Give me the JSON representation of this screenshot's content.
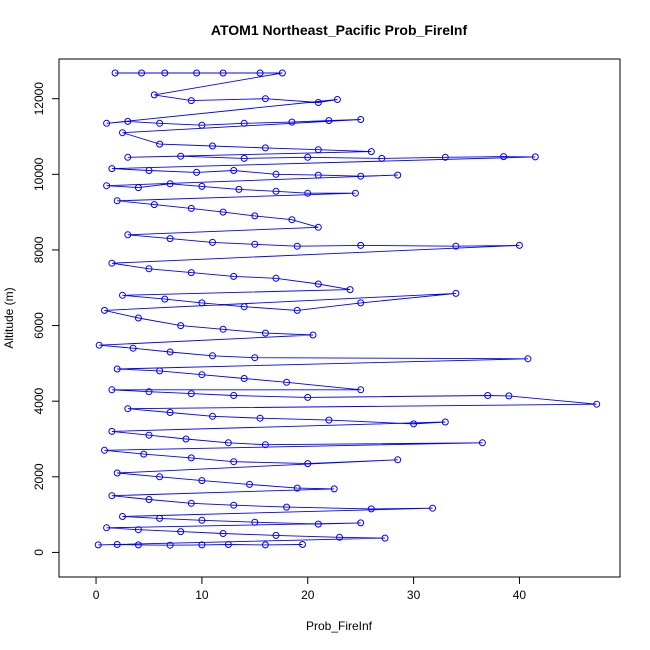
{
  "chart_data": {
    "type": "scatter",
    "title": "ATOM1 Northeast_Pacific Prob_FireInf",
    "xlabel": "Prob_FireInf",
    "ylabel": "Altitude (m)",
    "xlim": [
      -3.5,
      49.5
    ],
    "ylim": [
      -650,
      13050
    ],
    "x_ticks": [
      0,
      10,
      20,
      30,
      40
    ],
    "y_ticks": [
      0,
      2000,
      4000,
      6000,
      8000,
      10000,
      12000
    ],
    "grid": false,
    "legend": "none",
    "color": "#0000ff",
    "marker": "open-circle",
    "connected": true,
    "series": [
      {
        "values": [
          [
            1.8,
            12680
          ],
          [
            4.3,
            12680
          ],
          [
            6.5,
            12680
          ],
          [
            9.5,
            12680
          ],
          [
            12.0,
            12680
          ],
          [
            15.5,
            12680
          ],
          [
            17.6,
            12680
          ],
          [
            5.5,
            12100
          ],
          [
            9.0,
            11950
          ],
          [
            16.0,
            12000
          ],
          [
            21.0,
            11900
          ],
          [
            22.8,
            11980
          ],
          [
            1.0,
            11350
          ],
          [
            3.0,
            11400
          ],
          [
            6.0,
            11350
          ],
          [
            10.0,
            11300
          ],
          [
            14.0,
            11350
          ],
          [
            18.5,
            11380
          ],
          [
            22.0,
            11420
          ],
          [
            25.0,
            11450
          ],
          [
            2.5,
            11100
          ],
          [
            6.0,
            10800
          ],
          [
            11.0,
            10750
          ],
          [
            16.0,
            10700
          ],
          [
            21.0,
            10650
          ],
          [
            26.0,
            10600
          ],
          [
            3.0,
            10450
          ],
          [
            8.0,
            10480
          ],
          [
            14.0,
            10420
          ],
          [
            20.0,
            10450
          ],
          [
            27.0,
            10420
          ],
          [
            33.0,
            10450
          ],
          [
            38.5,
            10470
          ],
          [
            41.5,
            10460
          ],
          [
            1.5,
            10150
          ],
          [
            5.0,
            10100
          ],
          [
            9.5,
            10050
          ],
          [
            13.0,
            10100
          ],
          [
            17.0,
            10000
          ],
          [
            21.0,
            9980
          ],
          [
            25.0,
            9950
          ],
          [
            28.5,
            9980
          ],
          [
            1.0,
            9700
          ],
          [
            4.0,
            9650
          ],
          [
            7.0,
            9750
          ],
          [
            10.0,
            9680
          ],
          [
            13.5,
            9600
          ],
          [
            17.0,
            9550
          ],
          [
            20.0,
            9500
          ],
          [
            24.5,
            9500
          ],
          [
            2.0,
            9300
          ],
          [
            5.5,
            9200
          ],
          [
            9.0,
            9100
          ],
          [
            12.0,
            9000
          ],
          [
            15.0,
            8900
          ],
          [
            18.5,
            8800
          ],
          [
            21.0,
            8600
          ],
          [
            3.0,
            8400
          ],
          [
            7.0,
            8300
          ],
          [
            11.0,
            8200
          ],
          [
            15.0,
            8150
          ],
          [
            19.0,
            8100
          ],
          [
            25.0,
            8120
          ],
          [
            34.0,
            8100
          ],
          [
            40.0,
            8120
          ],
          [
            1.5,
            7650
          ],
          [
            5.0,
            7500
          ],
          [
            9.0,
            7400
          ],
          [
            13.0,
            7300
          ],
          [
            17.0,
            7250
          ],
          [
            21.0,
            7100
          ],
          [
            24.0,
            6950
          ],
          [
            2.5,
            6800
          ],
          [
            6.5,
            6700
          ],
          [
            10.0,
            6600
          ],
          [
            14.0,
            6500
          ],
          [
            19.0,
            6400
          ],
          [
            25.0,
            6600
          ],
          [
            34.0,
            6850
          ],
          [
            0.8,
            6400
          ],
          [
            4.0,
            6200
          ],
          [
            8.0,
            6000
          ],
          [
            12.0,
            5900
          ],
          [
            16.0,
            5800
          ],
          [
            20.5,
            5750
          ],
          [
            0.3,
            5480
          ],
          [
            3.5,
            5400
          ],
          [
            7.0,
            5300
          ],
          [
            11.0,
            5200
          ],
          [
            15.0,
            5150
          ],
          [
            40.8,
            5120
          ],
          [
            2.0,
            4850
          ],
          [
            6.0,
            4800
          ],
          [
            10.0,
            4700
          ],
          [
            14.0,
            4600
          ],
          [
            18.0,
            4500
          ],
          [
            25.0,
            4300
          ],
          [
            1.5,
            4300
          ],
          [
            5.0,
            4250
          ],
          [
            9.0,
            4200
          ],
          [
            13.0,
            4150
          ],
          [
            20.0,
            4100
          ],
          [
            37.0,
            4150
          ],
          [
            39.0,
            4140
          ],
          [
            47.3,
            3920
          ],
          [
            3.0,
            3800
          ],
          [
            7.0,
            3700
          ],
          [
            11.0,
            3600
          ],
          [
            15.5,
            3550
          ],
          [
            22.0,
            3500
          ],
          [
            30.0,
            3400
          ],
          [
            33.0,
            3450
          ],
          [
            1.5,
            3200
          ],
          [
            5.0,
            3100
          ],
          [
            8.5,
            3000
          ],
          [
            12.5,
            2900
          ],
          [
            16.0,
            2850
          ],
          [
            36.5,
            2900
          ],
          [
            0.8,
            2700
          ],
          [
            4.5,
            2600
          ],
          [
            9.0,
            2500
          ],
          [
            13.0,
            2400
          ],
          [
            20.0,
            2350
          ],
          [
            28.5,
            2450
          ],
          [
            2.0,
            2100
          ],
          [
            6.0,
            2000
          ],
          [
            10.0,
            1900
          ],
          [
            14.5,
            1800
          ],
          [
            19.0,
            1700
          ],
          [
            22.5,
            1680
          ],
          [
            1.5,
            1500
          ],
          [
            5.0,
            1400
          ],
          [
            9.0,
            1300
          ],
          [
            13.0,
            1250
          ],
          [
            18.0,
            1200
          ],
          [
            26.0,
            1150
          ],
          [
            31.8,
            1170
          ],
          [
            2.5,
            950
          ],
          [
            6.0,
            900
          ],
          [
            10.0,
            850
          ],
          [
            15.0,
            800
          ],
          [
            21.0,
            750
          ],
          [
            25.0,
            780
          ],
          [
            1.0,
            650
          ],
          [
            4.0,
            600
          ],
          [
            8.0,
            550
          ],
          [
            12.0,
            500
          ],
          [
            17.0,
            450
          ],
          [
            23.0,
            400
          ],
          [
            27.3,
            380
          ],
          [
            0.2,
            200
          ],
          [
            2.0,
            210
          ],
          [
            4.0,
            200
          ],
          [
            7.0,
            190
          ],
          [
            10.0,
            200
          ],
          [
            12.5,
            210
          ],
          [
            16.0,
            200
          ],
          [
            19.5,
            210
          ]
        ]
      }
    ]
  }
}
